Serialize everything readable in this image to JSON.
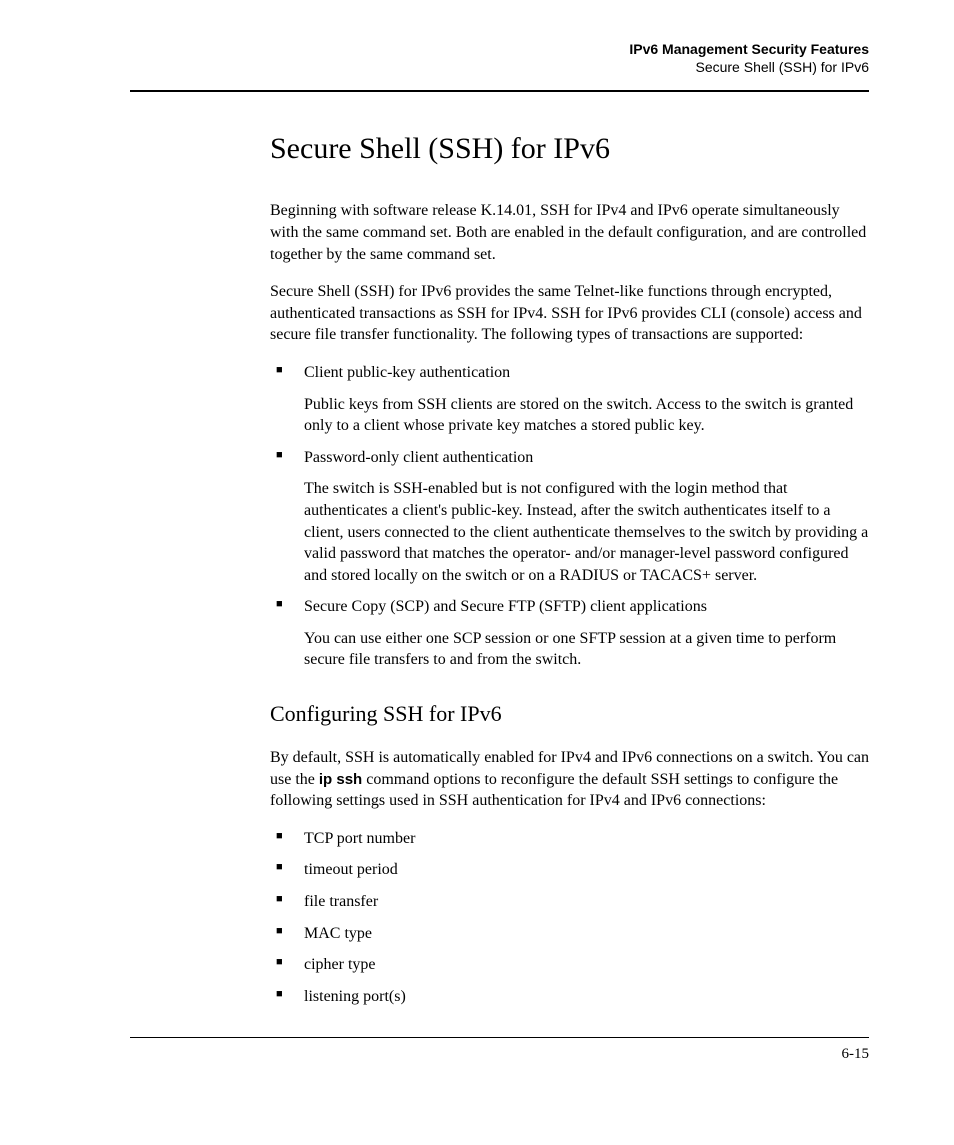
{
  "header": {
    "chapter": "IPv6 Management Security Features",
    "section": "Secure Shell (SSH) for IPv6"
  },
  "title": "Secure Shell (SSH) for IPv6",
  "intro1": "Beginning with software release K.14.01, SSH for IPv4 and IPv6 operate simultaneously with the same command set. Both are enabled in the default configuration, and are controlled together by the same command set.",
  "intro2": "Secure Shell (SSH) for IPv6 provides the same Telnet-like functions through encrypted, authenticated transactions as SSH for IPv4. SSH for IPv6 provides CLI (console) access and secure file transfer functionality. The following types of transactions are supported:",
  "transactions": [
    {
      "label": "Client public-key authentication",
      "desc": "Public keys from SSH clients are stored on the switch. Access to the switch is granted only to a client whose private key matches a stored public key."
    },
    {
      "label": "Password-only client authentication",
      "desc": "The switch is SSH-enabled but is not configured with the login method that authenticates a client's public-key. Instead, after the switch authenticates itself to a client, users connected to the client authenticate themselves to the switch by providing a valid password that matches the operator- and/or manager-level password configured and stored locally on the switch or on a RADIUS or TACACS+ server."
    },
    {
      "label": "Secure Copy (SCP) and Secure FTP (SFTP) client applications",
      "desc": "You can use either one SCP session or one SFTP session at a given time to perform secure file transfers to and from the switch."
    }
  ],
  "subtitle": "Configuring SSH for IPv6",
  "config_intro_pre": "By default, SSH is automatically enabled for IPv4 and IPv6 connections on a switch. You can use the ",
  "config_intro_cmd": "ip ssh",
  "config_intro_post": " command options to reconfigure the default SSH settings to configure the following settings used in SSH authentication for IPv4 and IPv6 connections:",
  "settings": [
    "TCP port number",
    "timeout period",
    "file transfer",
    "MAC type",
    "cipher type",
    "listening port(s)"
  ],
  "page_number": "6-15"
}
